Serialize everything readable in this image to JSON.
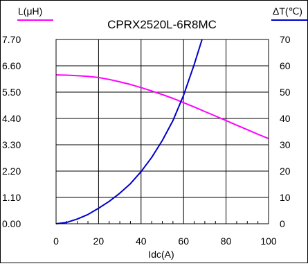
{
  "chart_data": {
    "type": "line",
    "title": "CPRX2520L-6R8MC",
    "xlabel": "Idc(A)",
    "ylabel_left": "L(μH)",
    "ylabel_right": "ΔT(℃)",
    "xlim": [
      0,
      100
    ],
    "x_ticks": [
      "0",
      "20",
      "40",
      "60",
      "80",
      "100"
    ],
    "x_tick_values": [
      0,
      20,
      40,
      60,
      80,
      100
    ],
    "ylim_left": [
      0,
      7.7
    ],
    "y_left_ticks": [
      "0.00",
      "1.10",
      "2.20",
      "3.30",
      "4.40",
      "5.50",
      "6.60",
      "7.70"
    ],
    "y_left_tick_values": [
      0,
      1.1,
      2.2,
      3.3,
      4.4,
      5.5,
      6.6,
      7.7
    ],
    "ylim_right": [
      0,
      70
    ],
    "y_right_ticks": [
      "0",
      "10",
      "20",
      "30",
      "40",
      "50",
      "60",
      "70"
    ],
    "y_right_tick_values": [
      0,
      10,
      20,
      30,
      40,
      50,
      60,
      70
    ],
    "grid": true,
    "series": [
      {
        "name": "L(μH)",
        "axis": "left",
        "color": "#ff00ff",
        "x": [
          0,
          5,
          10,
          15,
          20,
          25,
          30,
          35,
          40,
          45,
          50,
          55,
          60,
          65,
          70,
          75,
          80,
          85,
          90,
          95,
          100
        ],
        "y": [
          6.22,
          6.21,
          6.19,
          6.16,
          6.11,
          6.03,
          5.93,
          5.82,
          5.69,
          5.55,
          5.4,
          5.24,
          5.06,
          4.88,
          4.69,
          4.5,
          4.31,
          4.12,
          3.93,
          3.74,
          3.56
        ]
      },
      {
        "name": "ΔT(℃)",
        "axis": "right",
        "color": "#0000cc",
        "x": [
          0,
          5,
          10,
          15,
          20,
          25,
          30,
          35,
          40,
          45,
          50,
          55,
          60,
          65,
          68.7
        ],
        "y": [
          0,
          0.5,
          1.8,
          3.5,
          5.9,
          8.5,
          11.6,
          15.2,
          19.8,
          25.2,
          31.6,
          39.2,
          48.8,
          60.5,
          70
        ]
      }
    ]
  }
}
